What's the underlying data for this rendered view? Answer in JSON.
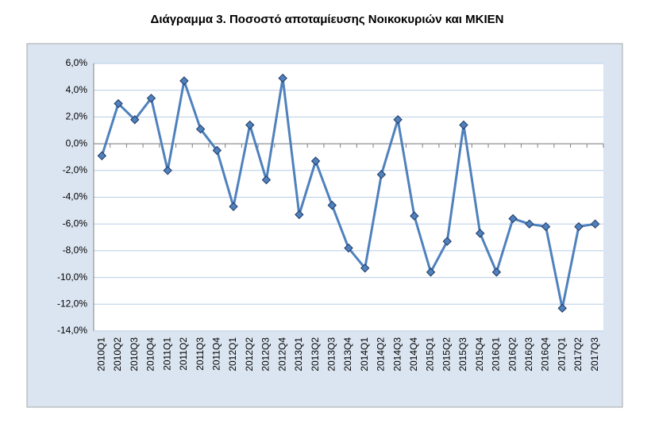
{
  "chart_data": {
    "type": "line",
    "title": "Διάγραμμα 3. Ποσοστό αποταμίευσης Νοικοκυριών και ΜΚΙΕΝ",
    "categories": [
      "2010Q1",
      "2010Q2",
      "2010Q3",
      "2010Q4",
      "2011Q1",
      "2011Q2",
      "2011Q3",
      "2011Q4",
      "2012Q1",
      "2012Q2",
      "2012Q3",
      "2012Q4",
      "2013Q1",
      "2013Q2",
      "2013Q3",
      "2013Q4",
      "2014Q1",
      "2014Q2",
      "2014Q3",
      "2014Q4",
      "2015Q1",
      "2015Q2",
      "2015Q3",
      "2015Q4",
      "2016Q1",
      "2016Q2",
      "2016Q3",
      "2016Q4",
      "2017Q1",
      "2017Q2",
      "2017Q3"
    ],
    "values": [
      -0.9,
      3.0,
      1.8,
      3.4,
      -2.0,
      4.7,
      1.1,
      -0.5,
      -4.7,
      1.4,
      -2.7,
      4.9,
      -5.3,
      -1.3,
      -4.6,
      -7.8,
      -9.3,
      -2.3,
      1.8,
      -5.4,
      -9.6,
      -7.3,
      1.4,
      -6.7,
      -9.6,
      -5.6,
      -6.0,
      -6.2,
      -12.3,
      -6.2,
      -6.0
    ],
    "color": "#4f81bd",
    "ylim": [
      -14,
      6
    ],
    "yticks": [
      {
        "value": -14,
        "label": "-14,0%"
      },
      {
        "value": -12,
        "label": "-12,0%"
      },
      {
        "value": -10,
        "label": "-10,0%"
      },
      {
        "value": -8,
        "label": "-8,0%"
      },
      {
        "value": -6,
        "label": "-6,0%"
      },
      {
        "value": -4,
        "label": "-4,0%"
      },
      {
        "value": -2,
        "label": "-2,0%"
      },
      {
        "value": 0,
        "label": "0,0%"
      },
      {
        "value": 2,
        "label": "2,0%"
      },
      {
        "value": 4,
        "label": "4,0%"
      },
      {
        "value": 6,
        "label": "6,0%"
      }
    ],
    "grid": true
  }
}
